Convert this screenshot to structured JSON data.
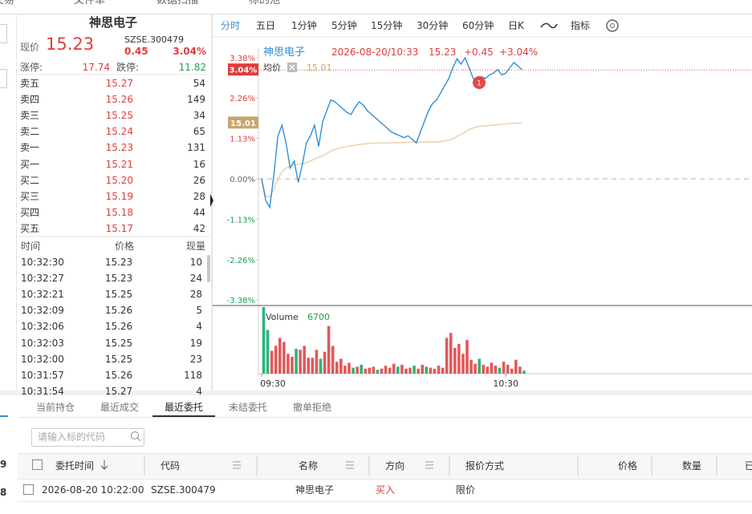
{
  "top_nav": [
    "交易",
    "文件单",
    "数据扫描",
    "标的池"
  ],
  "quote": {
    "name": "神思电子",
    "price_label": "现价",
    "price": "15.23",
    "code": "SZSE.300479",
    "change": "0.45",
    "change_pct": "3.04%",
    "limit_up_label": "涨停:",
    "limit_up": "17.74",
    "limit_down_label": "跌停:",
    "limit_down": "11.82"
  },
  "order_book": [
    [
      "卖五",
      "15.27",
      "54"
    ],
    [
      "卖四",
      "15.26",
      "149"
    ],
    [
      "卖三",
      "15.25",
      "34"
    ],
    [
      "卖二",
      "15.24",
      "65"
    ],
    [
      "卖一",
      "15.23",
      "131"
    ],
    [
      "买一",
      "15.21",
      "16"
    ],
    [
      "买二",
      "15.20",
      "26"
    ],
    [
      "买三",
      "15.19",
      "28"
    ],
    [
      "买四",
      "15.18",
      "44"
    ],
    [
      "买五",
      "15.17",
      "42"
    ]
  ],
  "trades": {
    "header": [
      "时间",
      "价格",
      "现量"
    ],
    "rows": [
      [
        "10:32:30",
        "15.23",
        "10"
      ],
      [
        "10:32:27",
        "15.23",
        "24"
      ],
      [
        "10:32:21",
        "15.25",
        "28"
      ],
      [
        "10:32:09",
        "15.26",
        "5"
      ],
      [
        "10:32:06",
        "15.26",
        "4"
      ],
      [
        "10:32:03",
        "15.25",
        "19"
      ],
      [
        "10:32:00",
        "15.25",
        "23"
      ],
      [
        "10:31:57",
        "15.26",
        "118"
      ],
      [
        "10:31:54",
        "15.27",
        "4"
      ]
    ]
  },
  "toolbar": [
    "分时",
    "五日",
    "1分钟",
    "5分钟",
    "15分钟",
    "30分钟",
    "60分钟",
    "日K",
    "指标"
  ],
  "chart_data": {
    "type": "line",
    "legend": {
      "datetime": "2026-08-20/10:33",
      "price": "15.23",
      "change": "+0.45",
      "change_pct": "+3.04%",
      "avg_price": "15.01"
    },
    "current_tag": "3.04%",
    "avg_tag": "15.01",
    "annotation": "1",
    "categories": [
      "09:30",
      null,
      null,
      null,
      null,
      null,
      null,
      null,
      null,
      null,
      null,
      null,
      null,
      null,
      null,
      null,
      null,
      null,
      null,
      null,
      null,
      null,
      null,
      null,
      null,
      null,
      null,
      null,
      null,
      null,
      null,
      null,
      null,
      null,
      null,
      null,
      null,
      null,
      null,
      null,
      null,
      null,
      null,
      null,
      null,
      null,
      null,
      null,
      null,
      null,
      null,
      null,
      null,
      null,
      null,
      null,
      null,
      null,
      null,
      null,
      "10:30",
      null,
      null,
      null,
      null
    ],
    "ylim": [
      -3.38,
      3.38
    ],
    "yticks": [
      {
        "value": 3.38,
        "label": "3.38%"
      },
      {
        "value": 2.26,
        "label": "2.26%"
      },
      {
        "value": 1.13,
        "label": "1.13%"
      },
      {
        "value": 0,
        "label": "0.00%"
      },
      {
        "value": -1.13,
        "label": "-1.13%"
      },
      {
        "value": -2.26,
        "label": "-2.26%"
      },
      {
        "value": -3.38,
        "label": "-3.38%"
      }
    ],
    "series": [
      {
        "name": "神思电子",
        "color": "#2f8fd8",
        "values": [
          0,
          -0.6,
          -0.8,
          0.1,
          1.2,
          1.5,
          1.0,
          0.3,
          0.5,
          -0.1,
          0.4,
          1.0,
          1.2,
          1.5,
          0.9,
          1.6,
          1.9,
          2.2,
          2.15,
          2.05,
          1.95,
          1.85,
          1.8,
          2.0,
          2.15,
          2.05,
          1.9,
          1.8,
          1.7,
          1.6,
          1.5,
          1.4,
          1.3,
          1.25,
          1.2,
          1.15,
          1.2,
          1.1,
          1.0,
          1.3,
          1.6,
          1.9,
          2.1,
          2.2,
          2.4,
          2.6,
          2.8,
          3.1,
          3.35,
          3.2,
          3.38,
          3.1,
          2.8,
          2.75,
          2.85,
          2.8,
          2.9,
          2.95,
          3.05,
          2.9,
          2.95,
          3.1,
          3.25,
          3.15,
          3.04
        ]
      },
      {
        "name": "均价",
        "color": "#ebcfa8",
        "values": [
          0,
          -0.5,
          -0.5,
          -0.3,
          0,
          0.2,
          0.3,
          0.35,
          0.4,
          0.4,
          0.42,
          0.45,
          0.5,
          0.55,
          0.6,
          0.65,
          0.7,
          0.78,
          0.82,
          0.86,
          0.88,
          0.9,
          0.92,
          0.94,
          0.96,
          0.97,
          0.98,
          0.99,
          1.0,
          1.0,
          1.0,
          1.0,
          1.01,
          1.01,
          1.01,
          1.02,
          1.02,
          1.02,
          1.02,
          1.02,
          1.03,
          1.03,
          1.03,
          1.03,
          1.04,
          1.06,
          1.08,
          1.12,
          1.18,
          1.25,
          1.3,
          1.38,
          1.42,
          1.45,
          1.47,
          1.48,
          1.49,
          1.5,
          1.51,
          1.52,
          1.53,
          1.54,
          1.55,
          1.55,
          1.56
        ]
      }
    ],
    "volume": {
      "name": "Volume",
      "latest": 6700,
      "ylim": [
        0,
        6700
      ],
      "values": [
        6700,
        4400,
        2300,
        2800,
        3600,
        3200,
        2000,
        1700,
        2500,
        2400,
        2800,
        1600,
        1600,
        2400,
        1500,
        2200,
        4800,
        2800,
        1200,
        1500,
        800,
        1100,
        600,
        700,
        900,
        500,
        600,
        700,
        400,
        500,
        800,
        600,
        1000,
        700,
        900,
        500,
        600,
        800,
        500,
        900,
        700,
        600,
        500,
        800,
        600,
        3600,
        4100,
        2600,
        3000,
        2000,
        3400,
        1400,
        1000,
        1500,
        900,
        700,
        1100,
        800,
        600,
        1200,
        900,
        500,
        1400,
        700,
        300
      ],
      "colors": [
        "#2db37d",
        "#2db37d",
        "#e05a5a",
        "#e05a5a",
        "#e05a5a",
        "#e05a5a",
        "#e05a5a",
        "#e05a5a",
        "#2db37d",
        "#e05a5a",
        "#e05a5a",
        "#e05a5a",
        "#e05a5a",
        "#e05a5a",
        "#2db37d",
        "#e05a5a",
        "#e05a5a",
        "#e05a5a",
        "#e05a5a",
        "#e05a5a",
        "#e05a5a",
        "#e05a5a",
        "#2db37d",
        "#e05a5a",
        "#2db37d",
        "#e05a5a",
        "#e05a5a",
        "#e05a5a",
        "#2db37d",
        "#e05a5a",
        "#e05a5a",
        "#e05a5a",
        "#e05a5a",
        "#2db37d",
        "#e05a5a",
        "#e05a5a",
        "#e05a5a",
        "#2db37d",
        "#e05a5a",
        "#e05a5a",
        "#2db37d",
        "#e05a5a",
        "#e05a5a",
        "#e05a5a",
        "#e05a5a",
        "#e05a5a",
        "#e05a5a",
        "#e05a5a",
        "#e05a5a",
        "#e05a5a",
        "#e05a5a",
        "#e05a5a",
        "#e05a5a",
        "#2db37d",
        "#e05a5a",
        "#e05a5a",
        "#e05a5a",
        "#e05a5a",
        "#2db37d",
        "#e05a5a",
        "#e05a5a",
        "#e05a5a",
        "#e05a5a",
        "#e05a5a",
        "#2db37d"
      ]
    }
  },
  "bottom": {
    "tabs": [
      "当前持仓",
      "最近成交",
      "最近委托",
      "未结委托",
      "撤单拒绝"
    ],
    "search_placeholder": "请输入标的代码",
    "headers": [
      "委托时间",
      "代码",
      "名称",
      "方向",
      "报价方式",
      "价格",
      "数量",
      "已"
    ],
    "row": [
      "2026-08-20 10:22:00",
      "SZSE.300479",
      "神思电子",
      "买入",
      "限价"
    ],
    "side_numbers": [
      "9",
      "8"
    ]
  }
}
